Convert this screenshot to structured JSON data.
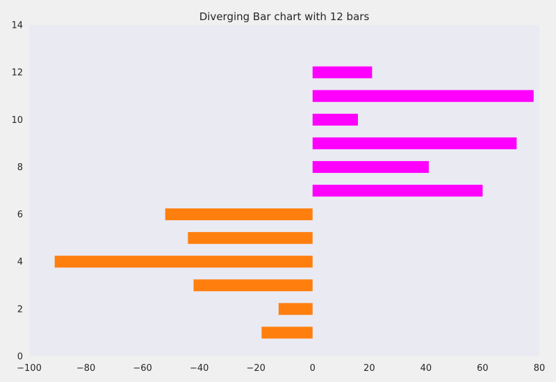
{
  "chart_data": {
    "type": "bar",
    "orientation": "horizontal",
    "title": "Diverging Bar chart with 12 bars",
    "xlabel": "",
    "ylabel": "",
    "xlim": [
      -100,
      80
    ],
    "ylim": [
      0,
      14
    ],
    "x_ticks": [
      "−100",
      "−80",
      "−60",
      "−40",
      "−20",
      "0",
      "20",
      "40",
      "60",
      "80"
    ],
    "x_tick_values": [
      -100,
      -80,
      -60,
      -40,
      -20,
      0,
      20,
      40,
      60,
      80
    ],
    "y_ticks": [
      "0",
      "2",
      "4",
      "6",
      "8",
      "10",
      "12",
      "14"
    ],
    "y_tick_values": [
      0,
      2,
      4,
      6,
      8,
      10,
      12,
      14
    ],
    "grid": false,
    "background_color": "#eaeaf2",
    "positive_color": "#ff00ff",
    "negative_color": "#ff7f0e",
    "bars": [
      {
        "y": 1,
        "value": -18
      },
      {
        "y": 2,
        "value": -12
      },
      {
        "y": 3,
        "value": -42
      },
      {
        "y": 4,
        "value": -91
      },
      {
        "y": 5,
        "value": -44
      },
      {
        "y": 6,
        "value": -52
      },
      {
        "y": 7,
        "value": 60
      },
      {
        "y": 8,
        "value": 41
      },
      {
        "y": 9,
        "value": 72
      },
      {
        "y": 10,
        "value": 16
      },
      {
        "y": 11,
        "value": 78
      },
      {
        "y": 12,
        "value": 21
      }
    ]
  }
}
